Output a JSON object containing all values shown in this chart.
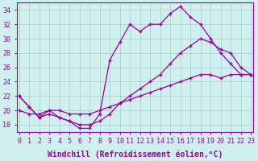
{
  "xlabel": "Windchill (Refroidissement éolien,°C)",
  "background_color": "#d0f0f0",
  "grid_color": "#b0c8d0",
  "line_color": "#990099",
  "x": [
    0,
    1,
    2,
    3,
    4,
    5,
    6,
    7,
    8,
    9,
    10,
    11,
    12,
    13,
    14,
    15,
    16,
    17,
    18,
    19,
    20,
    21,
    22,
    23
  ],
  "line1": [
    22,
    20.5,
    19,
    20,
    19,
    18.5,
    17.5,
    17.5,
    19.5,
    27,
    29.5,
    32,
    31,
    32,
    32,
    33.5,
    34.5,
    33,
    32,
    30,
    28,
    26.5,
    25,
    25
  ],
  "line2": [
    22,
    20.5,
    19,
    19.5,
    19,
    18.5,
    18,
    18,
    18.5,
    19.5,
    21,
    22,
    23,
    24,
    25,
    26.5,
    28,
    29,
    30,
    29.5,
    28.5,
    28,
    26,
    25
  ],
  "line3": [
    20,
    19.5,
    19.5,
    20,
    20,
    19.5,
    19.5,
    19.5,
    20,
    20.5,
    21,
    21.5,
    22,
    22.5,
    23,
    23.5,
    24,
    24.5,
    25,
    25,
    24.5,
    25,
    25,
    25
  ],
  "ylim": [
    17,
    35
  ],
  "xlim": [
    -0.2,
    23.2
  ],
  "yticks": [
    18,
    20,
    22,
    24,
    26,
    28,
    30,
    32,
    34
  ],
  "xticks": [
    0,
    1,
    2,
    3,
    4,
    5,
    6,
    7,
    8,
    9,
    10,
    11,
    12,
    13,
    14,
    15,
    16,
    17,
    18,
    19,
    20,
    21,
    22,
    23
  ],
  "tick_fontsize": 6.0,
  "xlabel_fontsize": 7.0
}
